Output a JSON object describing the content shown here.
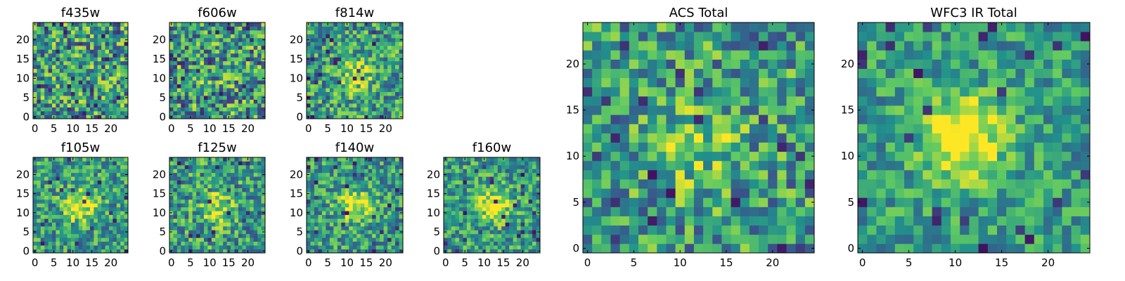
{
  "colormap": [
    "#440154",
    "#3b528b",
    "#21918c",
    "#5ec962",
    "#fde725"
  ],
  "chart_data": [
    {
      "type": "heatmap",
      "title": "f435w",
      "grid_size": 25,
      "xlim": [
        -0.5,
        24.5
      ],
      "ylim": [
        -0.5,
        24.5
      ],
      "x_ticks": [
        0,
        5,
        10,
        15,
        20
      ],
      "y_ticks": [
        0,
        5,
        10,
        15,
        20
      ],
      "grid": false,
      "peak": [
        12,
        11
      ],
      "peak_strength": 0.0,
      "noise": 0.3,
      "seed": 11
    },
    {
      "type": "heatmap",
      "title": "f606w",
      "grid_size": 25,
      "xlim": [
        -0.5,
        24.5
      ],
      "ylim": [
        -0.5,
        24.5
      ],
      "x_ticks": [
        0,
        5,
        10,
        15,
        20
      ],
      "y_ticks": [
        0,
        5,
        10,
        15,
        20
      ],
      "grid": false,
      "peak": [
        12,
        11
      ],
      "peak_strength": 0.05,
      "noise": 0.3,
      "seed": 23
    },
    {
      "type": "heatmap",
      "title": "f814w",
      "grid_size": 25,
      "xlim": [
        -0.5,
        24.5
      ],
      "ylim": [
        -0.5,
        24.5
      ],
      "x_ticks": [
        0,
        5,
        10,
        15,
        20
      ],
      "y_ticks": [
        0,
        5,
        10,
        15,
        20
      ],
      "grid": false,
      "peak": [
        12,
        11
      ],
      "peak_strength": 0.35,
      "noise": 0.25,
      "seed": 37
    },
    {
      "type": "heatmap",
      "title": "f105w",
      "grid_size": 25,
      "xlim": [
        -0.5,
        24.5
      ],
      "ylim": [
        -0.5,
        24.5
      ],
      "x_ticks": [
        0,
        5,
        10,
        15,
        20
      ],
      "y_ticks": [
        0,
        5,
        10,
        15,
        20
      ],
      "grid": false,
      "peak": [
        12,
        12
      ],
      "peak_strength": 0.45,
      "noise": 0.22,
      "seed": 41
    },
    {
      "type": "heatmap",
      "title": "f125w",
      "grid_size": 25,
      "xlim": [
        -0.5,
        24.5
      ],
      "ylim": [
        -0.5,
        24.5
      ],
      "x_ticks": [
        0,
        5,
        10,
        15,
        20
      ],
      "y_ticks": [
        0,
        5,
        10,
        15,
        20
      ],
      "grid": false,
      "peak": [
        12,
        11
      ],
      "peak_strength": 0.35,
      "noise": 0.25,
      "seed": 53
    },
    {
      "type": "heatmap",
      "title": "f140w",
      "grid_size": 25,
      "xlim": [
        -0.5,
        24.5
      ],
      "ylim": [
        -0.5,
        24.5
      ],
      "x_ticks": [
        0,
        5,
        10,
        15,
        20
      ],
      "y_ticks": [
        0,
        5,
        10,
        15,
        20
      ],
      "grid": false,
      "peak": [
        12,
        12
      ],
      "peak_strength": 0.45,
      "noise": 0.22,
      "seed": 67
    },
    {
      "type": "heatmap",
      "title": "f160w",
      "grid_size": 25,
      "xlim": [
        -0.5,
        24.5
      ],
      "ylim": [
        -0.5,
        24.5
      ],
      "x_ticks": [
        0,
        5,
        10,
        15,
        20
      ],
      "y_ticks": [
        0,
        5,
        10,
        15,
        20
      ],
      "grid": false,
      "peak": [
        12,
        12
      ],
      "peak_strength": 0.45,
      "noise": 0.22,
      "seed": 79
    },
    {
      "type": "heatmap",
      "title": "ACS Total",
      "grid_size": 25,
      "xlim": [
        -0.5,
        24.5
      ],
      "ylim": [
        -0.5,
        24.5
      ],
      "x_ticks": [
        0,
        5,
        10,
        15,
        20
      ],
      "y_ticks": [
        0,
        5,
        10,
        15,
        20
      ],
      "grid": false,
      "peak": [
        12,
        11
      ],
      "peak_strength": 0.25,
      "noise": 0.25,
      "seed": 83
    },
    {
      "type": "heatmap",
      "title": "WFC3 IR Total",
      "grid_size": 25,
      "xlim": [
        -0.5,
        24.5
      ],
      "ylim": [
        -0.5,
        24.5
      ],
      "x_ticks": [
        0,
        5,
        10,
        15,
        20
      ],
      "y_ticks": [
        0,
        5,
        10,
        15,
        20
      ],
      "grid": false,
      "peak": [
        11,
        12
      ],
      "peak_strength": 0.6,
      "noise": 0.18,
      "seed": 97
    }
  ]
}
